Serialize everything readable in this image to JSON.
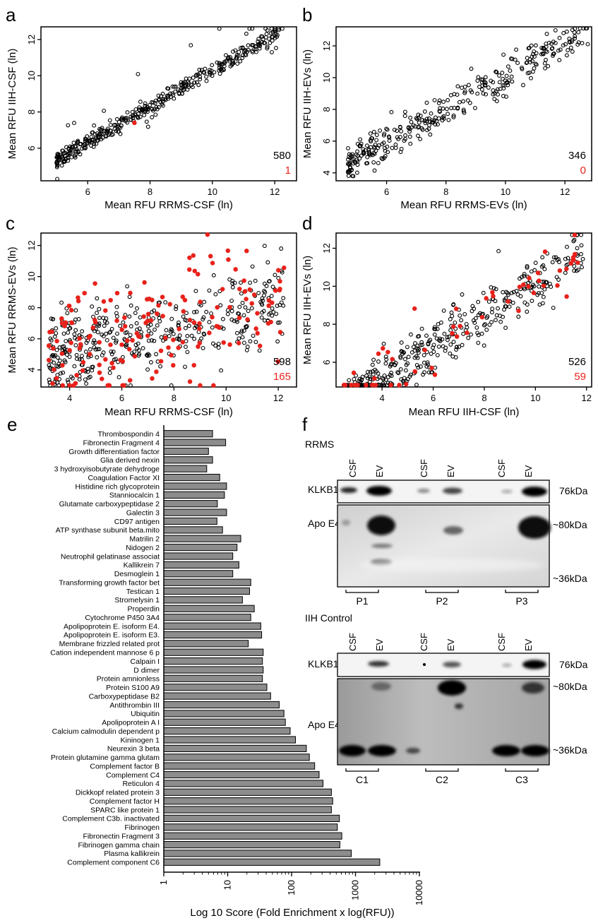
{
  "panels": {
    "a": {
      "letter": "a",
      "xlabel": "Mean RFU RRMS-CSF (ln)",
      "ylabel": "Mean RFU IIH-CSF (ln)",
      "count_black": "580",
      "count_red": "1"
    },
    "b": {
      "letter": "b",
      "xlabel": "Mean RFU RRMS-EVs (ln)",
      "ylabel": "Mean RFU IIH-EVs (ln)",
      "count_black": "346",
      "count_red": "0"
    },
    "c": {
      "letter": "c",
      "xlabel": "Mean RFU RRMS-CSF (ln)",
      "ylabel": "Mean RFU RRMS-EVs (ln)",
      "count_black": "598",
      "count_red": "165"
    },
    "d": {
      "letter": "d",
      "xlabel": "Mean RFU IIH-CSF (ln)",
      "ylabel": "Mean RFU IIH-EVs (ln)",
      "count_black": "526",
      "count_red": "59"
    },
    "e": {
      "letter": "e",
      "xlabel": "Log 10 Score (Fold Enrichment x log(RFU))"
    },
    "f": {
      "letter": "f"
    }
  },
  "colors": {
    "black_points": "#000000",
    "red_points": "#e8221b",
    "bars": "#8c8c8c"
  },
  "blots": {
    "rrms": {
      "group": "RRMS",
      "lanes": [
        "CSF",
        "EV",
        "CSF",
        "EV",
        "CSF",
        "EV"
      ],
      "klkb1_label": "KLKB1",
      "klkb1_size": "76kDa",
      "apoe4_label": "Apo E4",
      "apoe4_size_top": "~80kDa",
      "apoe4_size_bottom": "~36kDa",
      "patients": [
        "P1",
        "P2",
        "P3"
      ]
    },
    "iih": {
      "group": "IIH Control",
      "lanes": [
        "CSF",
        "EV",
        "CSF",
        "EV",
        "CSF",
        "EV"
      ],
      "klkb1_label": "KLKB1",
      "klkb1_size": "76kDa",
      "apoe4_label": "Apo E4",
      "apoe4_size_top": "~80kDa",
      "apoe4_size_bottom": "~36kDa",
      "patients": [
        "C1",
        "C2",
        "C3"
      ]
    }
  },
  "chart_data": [
    {
      "panel": "a",
      "type": "scatter",
      "xlabel": "Mean RFU RRMS-CSF (ln)",
      "ylabel": "Mean RFU IIH-CSF (ln)",
      "xlim": [
        4.5,
        12.7
      ],
      "ylim": [
        4.2,
        12.7
      ],
      "xticks": [
        6,
        8,
        10,
        12
      ],
      "yticks": [
        6,
        8,
        10,
        12
      ],
      "trend": {
        "x_range": [
          5.0,
          12.3
        ],
        "slope": 1.0,
        "intercept": 0.3,
        "spread": 0.3
      },
      "series": [
        {
          "name": "580",
          "n_points": 580
        },
        {
          "name": "1",
          "points": [
            [
              7.5,
              7.4
            ]
          ]
        }
      ],
      "annotations": [
        "580",
        "1"
      ]
    },
    {
      "panel": "b",
      "type": "scatter",
      "xlabel": "Mean RFU RRMS-EVs (ln)",
      "ylabel": "Mean RFU IIH-EVs (ln)",
      "xlim": [
        4.3,
        12.9
      ],
      "ylim": [
        3.5,
        13.2
      ],
      "xticks": [
        6,
        8,
        10,
        12
      ],
      "yticks": [
        4,
        6,
        8,
        10,
        12
      ],
      "trend": {
        "x_range": [
          4.7,
          12.8
        ],
        "slope": 1.05,
        "intercept": -0.4,
        "spread": 0.8
      },
      "series": [
        {
          "name": "346",
          "n_points": 346
        }
      ],
      "annotations": [
        "346",
        "0"
      ]
    },
    {
      "panel": "c",
      "type": "scatter",
      "xlabel": "Mean RFU RRMS-CSF (ln)",
      "ylabel": "Mean RFU RRMS-EVs (ln)",
      "xlim": [
        2.9,
        12.7
      ],
      "ylim": [
        2.9,
        12.8
      ],
      "xticks": [
        4,
        6,
        8,
        10,
        12
      ],
      "yticks": [
        4,
        6,
        8,
        10,
        12
      ],
      "trend": {
        "x_range": [
          3.2,
          12.3
        ],
        "slope": 0.35,
        "intercept": 4.0,
        "spread": 1.9
      },
      "series": [
        {
          "name": "598",
          "n_points": 598
        },
        {
          "name": "165",
          "n_points": 165
        }
      ],
      "annotations": [
        "598",
        "165"
      ]
    },
    {
      "panel": "d",
      "type": "scatter",
      "xlabel": "Mean RFU IIH-CSF (ln)",
      "ylabel": "Mean RFU IIH-EVs (ln)",
      "xlim": [
        2.2,
        12.2
      ],
      "ylim": [
        4.7,
        12.8
      ],
      "xticks": [
        4,
        6,
        8,
        10,
        12
      ],
      "yticks": [
        6,
        8,
        10,
        12
      ],
      "trend": {
        "x_range": [
          2.5,
          11.9
        ],
        "slope": 0.85,
        "intercept": 1.7,
        "spread": 0.9
      },
      "series": [
        {
          "name": "526",
          "n_points": 526
        },
        {
          "name": "59",
          "n_points": 59
        }
      ],
      "annotations": [
        "526",
        "59"
      ]
    },
    {
      "panel": "e",
      "type": "bar",
      "orientation": "horizontal",
      "x_scale": "log",
      "xlabel": "Log 10 Score (Fold Enrichment x log(RFU))",
      "xlim": [
        1,
        10000
      ],
      "xticks": [
        "1",
        "10",
        "100",
        "1000",
        "10000"
      ],
      "categories": [
        "Thrombospondin 4",
        "Fibronectin Fragment 4",
        "Growth differentiation factor",
        "Glia derived nexin",
        "3 hydroxyisobutyrate dehydroge",
        "Coagulation Factor XI",
        "Histidine rich glycoprotein",
        "Stanniocalcin 1",
        "Glutamate carboxypeptidase 2",
        "Galectin 3",
        "CD97 antigen",
        "ATP synthase subunit beta.mito",
        "Matrilin 2",
        "Nidogen 2",
        "Neutrophil gelatinase associat",
        "Kallikrein 7",
        "Desmoglein 1",
        "Transforming growth factor bet",
        "Testican 1",
        "Stromelysin 1",
        "Properdin",
        "Cytochrome P450 3A4",
        "Apolipoprotein E. isoform E4.",
        "Apolipoprotein E. isoform E3.",
        "Membrane frizzled related prot",
        "Cation independent mannose 6 p",
        "Calpain I",
        "D dimer",
        "Protein amnionless",
        "Protein S100 A9",
        "Carboxypeptidase B2",
        "Antithrombin III",
        "Ubiquitin",
        "Apolipoprotein A I",
        "Calcium calmodulin dependent p",
        "Kininogen 1",
        "Neurexin 3 beta",
        "Protein glutamine gamma glutam",
        "Complement factor B",
        "Complement C4",
        "Reticulon 4",
        "Dickkopf related protein 3",
        "Complement factor H",
        "SPARC like protein 1",
        "Complement C3b. inactivated",
        "Fibrinogen",
        "Fibronectin Fragment 3",
        "Fibrinogen gamma chain",
        "Plasma kallikrein",
        "Complement component C6"
      ],
      "values": [
        5.8,
        9.3,
        5.0,
        5.8,
        4.7,
        7.5,
        9.6,
        8.9,
        6.9,
        9.6,
        6.8,
        8.3,
        16,
        14,
        12,
        15,
        12,
        23,
        22,
        17,
        26,
        23,
        33,
        34,
        21,
        36,
        35,
        36,
        35,
        41,
        47,
        64,
        76,
        80,
        95,
        115,
        170,
        190,
        230,
        270,
        310,
        420,
        440,
        420,
        560,
        520,
        610,
        570,
        860,
        2400
      ]
    }
  ]
}
